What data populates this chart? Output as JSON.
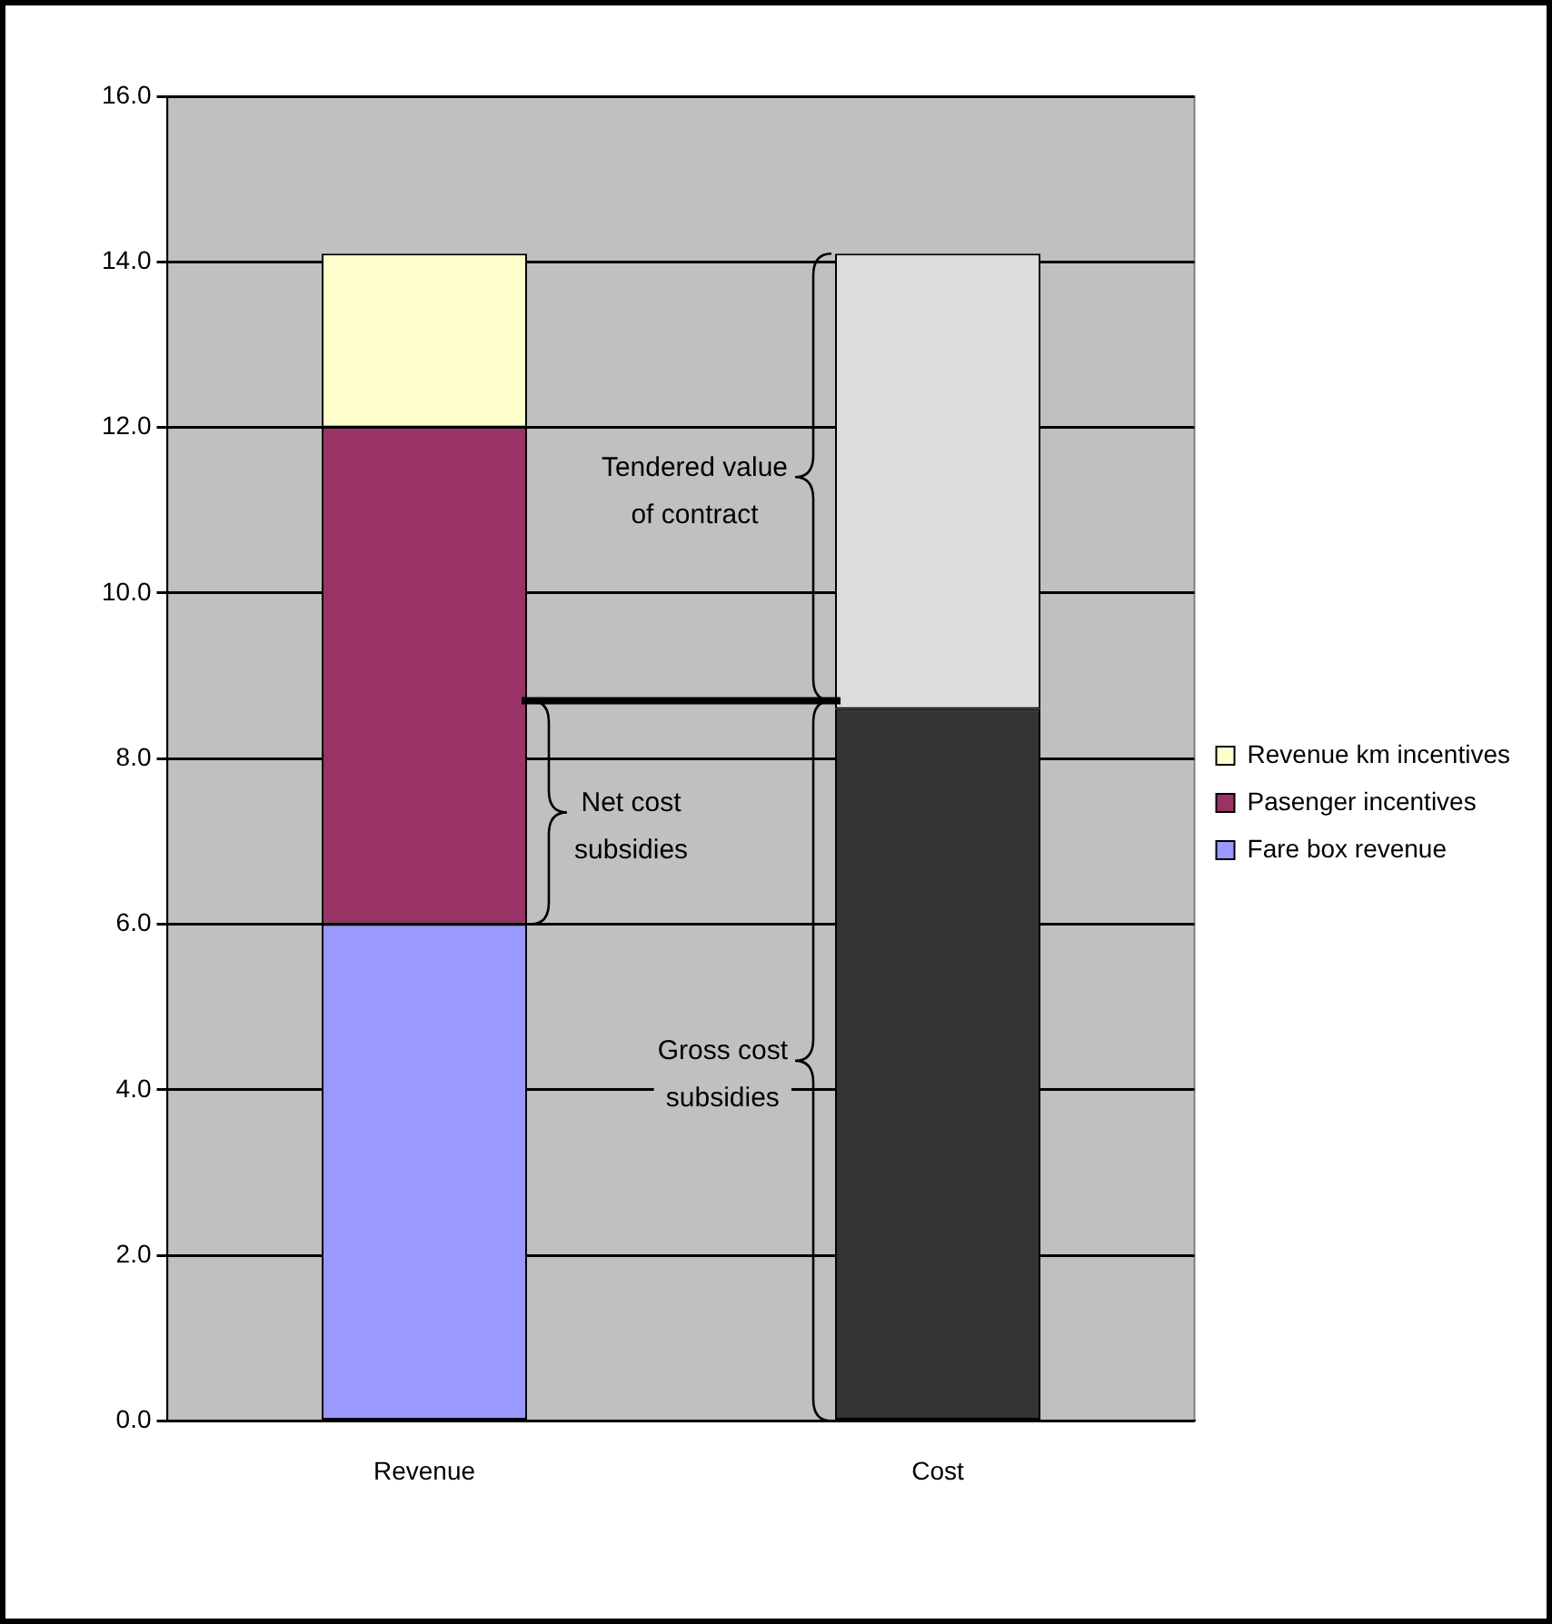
{
  "chart_data": {
    "type": "bar",
    "stacked": true,
    "categories": [
      "Revenue",
      "Cost"
    ],
    "series": [
      {
        "name": "Fare box revenue",
        "color": "#9999ff",
        "values": [
          6.0,
          null
        ]
      },
      {
        "name": "Pasenger incentives",
        "color": "#993366",
        "values": [
          6.0,
          null
        ]
      },
      {
        "name": "Revenue km incentives",
        "color": "#ffffcc",
        "values": [
          2.1,
          null
        ]
      },
      {
        "color": "#333333",
        "values": [
          null,
          8.6
        ]
      },
      {
        "color": "#dcdcdc",
        "values": [
          null,
          5.5
        ]
      }
    ],
    "ylim": [
      0,
      16
    ],
    "yticks": [
      {
        "value": 0,
        "label": "0.0"
      },
      {
        "value": 2,
        "label": "2.0"
      },
      {
        "value": 4,
        "label": "4.0"
      },
      {
        "value": 6,
        "label": "6.0"
      },
      {
        "value": 8,
        "label": "8.0"
      },
      {
        "value": 10,
        "label": "10.0"
      },
      {
        "value": 12,
        "label": "12.0"
      },
      {
        "value": 14,
        "label": "14.0"
      },
      {
        "value": 16,
        "label": "16.0"
      }
    ],
    "ref_lines": [
      {
        "axis": "y",
        "value": 8.7,
        "color": "#000000"
      }
    ],
    "annotations": [
      "Tendered value of contract",
      "Net cost subsidies",
      "Gross cost subsidies"
    ],
    "grid": "y",
    "legend": "right"
  }
}
